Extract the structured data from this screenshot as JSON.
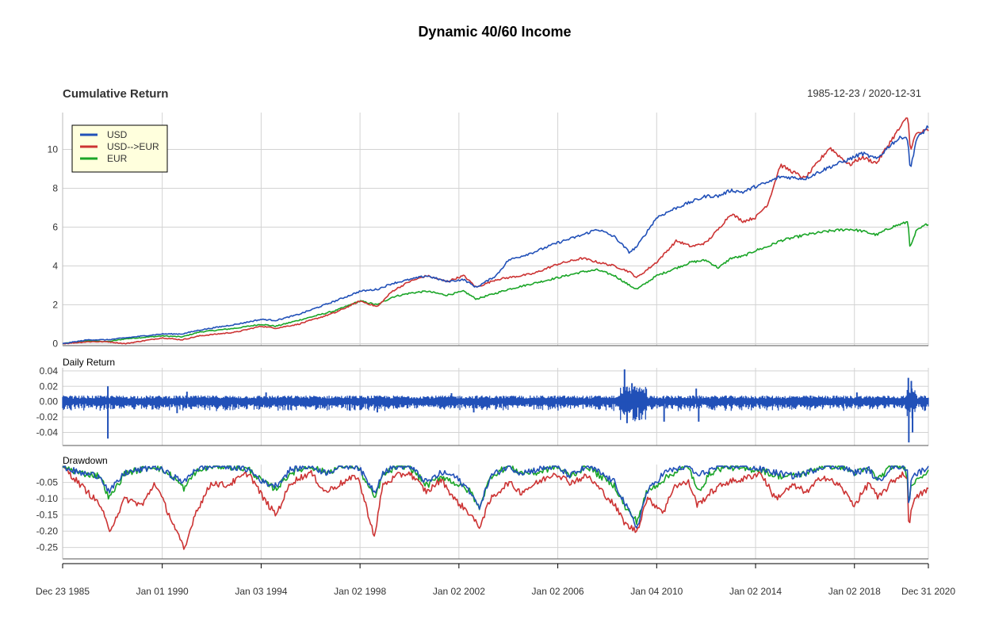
{
  "chart_data": {
    "type": "line",
    "title": "Dynamic 40/60 Income",
    "date_range": "1985-12-23 / 2020-12-31",
    "x_tick_labels": [
      "Dec 23 1985",
      "Jan 01 1990",
      "Jan 03 1994",
      "Jan 02 1998",
      "Jan 02 2002",
      "Jan 02 2006",
      "Jan 04 2010",
      "Jan 02 2014",
      "Jan 02 2018",
      "Dec 31 2020"
    ],
    "x_tick_years": [
      1985.97,
      1990.0,
      1994.0,
      1998.0,
      2002.0,
      2006.0,
      2010.0,
      2014.0,
      2018.0,
      2020.99
    ],
    "xlim": [
      1985.97,
      2020.99
    ],
    "grid": true,
    "legend_position": "top-left",
    "colors": {
      "USD": "#2150b8",
      "USD-->EUR": "#cc3333",
      "EUR": "#1aa527"
    },
    "panels": [
      {
        "label": "Cumulative Return",
        "ylim": [
          -0.1,
          11.9
        ],
        "yticks": [
          "0",
          "2",
          "4",
          "6",
          "8",
          "10"
        ],
        "ytick_values": [
          0,
          2,
          4,
          6,
          8,
          10
        ],
        "x": [
          1985.97,
          1987.0,
          1987.8,
          1988.5,
          1990.0,
          1990.8,
          1991.5,
          1993.0,
          1994.0,
          1994.6,
          1995.5,
          1997.0,
          1998.0,
          1998.7,
          1999.3,
          2000.0,
          2000.7,
          2001.5,
          2002.2,
          2002.7,
          2003.5,
          2004.0,
          2005.0,
          2006.0,
          2007.0,
          2007.6,
          2008.3,
          2008.9,
          2009.2,
          2010.0,
          2010.8,
          2011.4,
          2012.0,
          2012.5,
          2013.0,
          2013.5,
          2014.0,
          2014.5,
          2015.0,
          2016.0,
          2017.0,
          2017.8,
          2018.3,
          2018.9,
          2019.5,
          2020.0,
          2020.17,
          2020.25,
          2020.5,
          2020.99
        ],
        "series": [
          {
            "name": "USD",
            "values": [
              0,
              0.2,
              0.2,
              0.3,
              0.5,
              0.5,
              0.7,
              1.0,
              1.25,
              1.2,
              1.5,
              2.2,
              2.7,
              2.8,
              3.1,
              3.3,
              3.5,
              3.2,
              3.3,
              2.9,
              3.5,
              4.3,
              4.7,
              5.2,
              5.6,
              5.9,
              5.5,
              4.7,
              5.0,
              6.5,
              7.0,
              7.3,
              7.6,
              7.6,
              7.9,
              7.8,
              8.1,
              8.3,
              8.6,
              8.5,
              9.1,
              9.5,
              9.8,
              9.5,
              10.3,
              10.7,
              10.5,
              8.9,
              10.5,
              11.2
            ]
          },
          {
            "name": "USD-->EUR",
            "values": [
              0,
              0.1,
              0.1,
              0.0,
              0.3,
              0.2,
              0.4,
              0.6,
              0.9,
              0.8,
              1.0,
              1.6,
              2.2,
              1.9,
              2.7,
              3.2,
              3.5,
              3.2,
              3.5,
              2.9,
              3.3,
              3.4,
              3.6,
              4.1,
              4.4,
              4.2,
              4.0,
              3.7,
              3.4,
              4.2,
              5.3,
              5.0,
              5.2,
              5.9,
              6.7,
              6.3,
              6.5,
              7.2,
              9.2,
              8.5,
              10.1,
              9.2,
              9.6,
              9.3,
              10.5,
              11.4,
              11.7,
              10.0,
              10.8,
              11.0
            ]
          },
          {
            "name": "EUR",
            "values": [
              0,
              0.15,
              0.1,
              0.25,
              0.4,
              0.35,
              0.6,
              0.8,
              1.0,
              0.9,
              1.2,
              1.7,
              2.2,
              2.0,
              2.4,
              2.6,
              2.7,
              2.5,
              2.7,
              2.3,
              2.6,
              2.8,
              3.1,
              3.4,
              3.7,
              3.8,
              3.5,
              3.0,
              2.8,
              3.5,
              3.9,
              4.2,
              4.3,
              3.9,
              4.4,
              4.5,
              4.8,
              5.0,
              5.3,
              5.6,
              5.8,
              5.9,
              5.8,
              5.6,
              6.0,
              6.2,
              6.3,
              4.9,
              5.8,
              6.2
            ]
          }
        ]
      },
      {
        "label": "Daily Return",
        "ylim": [
          -0.057,
          0.044
        ],
        "yticks": [
          "0.04",
          "0.02",
          "0.00",
          "-0.02",
          "-0.04"
        ],
        "ytick_values": [
          0.04,
          0.02,
          0.0,
          -0.02,
          -0.04
        ],
        "series": [
          {
            "name": "USD",
            "color": "#2150b8"
          }
        ],
        "spikes": [
          {
            "x": 1987.8,
            "value": -0.048
          },
          {
            "x": 1987.8,
            "value": 0.02
          },
          {
            "x": 1990.6,
            "value": -0.015
          },
          {
            "x": 1991.0,
            "value": 0.013
          },
          {
            "x": 1994.2,
            "value": 0.012
          },
          {
            "x": 1998.7,
            "value": -0.014
          },
          {
            "x": 2001.7,
            "value": 0.011
          },
          {
            "x": 2002.6,
            "value": -0.014
          },
          {
            "x": 2008.7,
            "value": 0.042
          },
          {
            "x": 2008.8,
            "value": -0.028
          },
          {
            "x": 2009.0,
            "value": 0.024
          },
          {
            "x": 2009.3,
            "value": -0.024
          },
          {
            "x": 2010.3,
            "value": -0.026
          },
          {
            "x": 2011.6,
            "value": 0.017
          },
          {
            "x": 2011.7,
            "value": -0.026
          },
          {
            "x": 2018.1,
            "value": 0.012
          },
          {
            "x": 2020.18,
            "value": 0.031
          },
          {
            "x": 2020.2,
            "value": -0.053
          },
          {
            "x": 2020.3,
            "value": 0.027
          },
          {
            "x": 2020.35,
            "value": -0.04
          }
        ]
      },
      {
        "label": "Drawdown",
        "ylim": [
          -0.285,
          0.005
        ],
        "yticks": [
          "-0.05",
          "-0.10",
          "-0.15",
          "-0.20",
          "-0.25"
        ],
        "ytick_values": [
          -0.05,
          -0.1,
          -0.15,
          -0.2,
          -0.25
        ],
        "x": [
          1985.97,
          1986.6,
          1987.5,
          1987.85,
          1988.5,
          1989.2,
          1989.7,
          1990.4,
          1990.9,
          1991.3,
          1992.0,
          1992.6,
          1993.5,
          1994.1,
          1994.6,
          1995.2,
          1996.0,
          1996.6,
          1997.3,
          1997.9,
          1998.6,
          1998.9,
          1999.5,
          2000.0,
          2000.7,
          2001.3,
          2001.8,
          2002.5,
          2002.8,
          2003.3,
          2004.0,
          2004.5,
          2005.2,
          2005.9,
          2006.5,
          2007.2,
          2007.7,
          2008.3,
          2008.75,
          2009.2,
          2009.6,
          2010.3,
          2010.7,
          2011.3,
          2011.65,
          2012.2,
          2012.8,
          2013.5,
          2014.2,
          2014.8,
          2015.5,
          2016.1,
          2016.7,
          2017.4,
          2018.0,
          2018.6,
          2018.95,
          2019.5,
          2020.0,
          2020.15,
          2020.2,
          2020.3,
          2020.6,
          2020.99
        ],
        "series": [
          {
            "name": "USD",
            "values": [
              0,
              -0.02,
              -0.03,
              -0.08,
              -0.02,
              -0.01,
              0,
              -0.03,
              -0.05,
              -0.01,
              0,
              0,
              -0.01,
              -0.05,
              -0.06,
              -0.01,
              0,
              -0.02,
              0,
              0,
              -0.08,
              -0.02,
              0,
              0,
              -0.05,
              -0.02,
              -0.03,
              -0.08,
              -0.13,
              -0.03,
              0,
              -0.02,
              -0.01,
              0,
              -0.03,
              0,
              -0.02,
              -0.05,
              -0.12,
              -0.19,
              -0.08,
              -0.02,
              -0.01,
              0,
              -0.03,
              -0.01,
              0,
              0,
              -0.01,
              -0.02,
              -0.03,
              -0.02,
              0,
              0,
              -0.02,
              -0.01,
              -0.05,
              0,
              0,
              -0.02,
              -0.13,
              -0.03,
              -0.02,
              0
            ]
          },
          {
            "name": "USD-->EUR",
            "values": [
              0,
              -0.05,
              -0.12,
              -0.2,
              -0.1,
              -0.12,
              -0.05,
              -0.17,
              -0.26,
              -0.15,
              -0.05,
              -0.06,
              -0.02,
              -0.1,
              -0.15,
              -0.05,
              -0.02,
              -0.08,
              -0.05,
              -0.03,
              -0.22,
              -0.06,
              -0.03,
              -0.02,
              -0.08,
              -0.04,
              -0.1,
              -0.15,
              -0.19,
              -0.1,
              -0.05,
              -0.08,
              -0.05,
              -0.02,
              -0.05,
              -0.03,
              -0.07,
              -0.12,
              -0.18,
              -0.2,
              -0.1,
              -0.14,
              -0.06,
              -0.05,
              -0.12,
              -0.08,
              -0.05,
              -0.04,
              -0.02,
              -0.1,
              -0.06,
              -0.08,
              -0.03,
              -0.06,
              -0.12,
              -0.05,
              -0.1,
              -0.05,
              -0.02,
              -0.05,
              -0.2,
              -0.12,
              -0.09,
              -0.07
            ]
          },
          {
            "name": "EUR",
            "values": [
              0,
              -0.02,
              -0.03,
              -0.1,
              -0.02,
              -0.01,
              0,
              -0.03,
              -0.07,
              -0.02,
              0,
              0,
              -0.01,
              -0.05,
              -0.07,
              -0.02,
              0,
              -0.02,
              0,
              0,
              -0.1,
              -0.03,
              0,
              0,
              -0.06,
              -0.03,
              -0.05,
              -0.08,
              -0.13,
              -0.03,
              0,
              -0.02,
              -0.02,
              0,
              -0.03,
              0,
              -0.03,
              -0.06,
              -0.13,
              -0.17,
              -0.08,
              -0.04,
              -0.02,
              0,
              -0.08,
              -0.02,
              0,
              -0.01,
              -0.01,
              -0.03,
              -0.03,
              -0.02,
              0,
              0,
              -0.02,
              -0.01,
              -0.04,
              0,
              0,
              -0.03,
              -0.12,
              -0.06,
              -0.03,
              -0.02
            ]
          }
        ]
      }
    ]
  }
}
